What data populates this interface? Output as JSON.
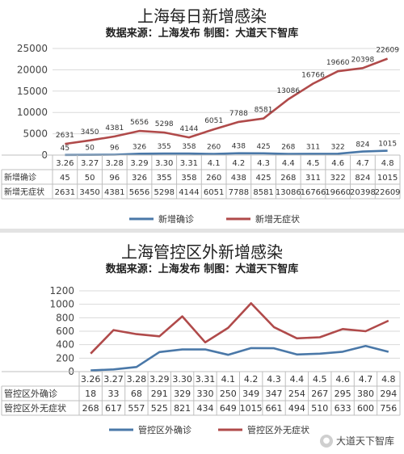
{
  "watermark": {
    "text": "大道天下智库",
    "icon": "wechat-icon"
  },
  "chart_data": [
    {
      "type": "line",
      "title": "上海每日新增感染",
      "subtitle": "数据来源：上海发布 制图：大道天下智库",
      "categories": [
        "3.26",
        "3.27",
        "3.28",
        "3.29",
        "3.30",
        "3.31",
        "4.1",
        "4.2",
        "4.3",
        "4.4",
        "4.5",
        "4.6",
        "4.7",
        "4.8"
      ],
      "ylim": [
        0,
        25000
      ],
      "yticks": [
        0,
        5000,
        10000,
        15000,
        20000,
        25000
      ],
      "grid": true,
      "legend_position": "bottom",
      "data_table": true,
      "series": [
        {
          "name": "新增确诊",
          "color": "#4a78a8",
          "values": [
            45,
            50,
            96,
            326,
            355,
            358,
            260,
            438,
            425,
            268,
            311,
            322,
            824,
            1015
          ]
        },
        {
          "name": "新增无症状",
          "color": "#b04a4a",
          "values": [
            2631,
            3450,
            4381,
            5656,
            5298,
            4144,
            6051,
            7788,
            8581,
            13086,
            16766,
            19660,
            20398,
            22609
          ]
        }
      ]
    },
    {
      "type": "line",
      "title": "上海管控区外新增感染",
      "subtitle": "数据来源：上海发布 制图：大道天下智库",
      "categories": [
        "3.26",
        "3.27",
        "3.28",
        "3.29",
        "3.30",
        "3.31",
        "4.1",
        "4.2",
        "4.3",
        "4.4",
        "4.5",
        "4.6",
        "4.7",
        "4.8"
      ],
      "ylim": [
        0,
        1200
      ],
      "yticks": [
        0,
        200,
        400,
        600,
        800,
        1000,
        1200
      ],
      "grid": true,
      "legend_position": "bottom",
      "data_table": true,
      "series": [
        {
          "name": "管控区外确诊",
          "color": "#4a78a8",
          "values": [
            18,
            33,
            68,
            291,
            329,
            330,
            250,
            349,
            347,
            254,
            267,
            295,
            380,
            294
          ]
        },
        {
          "name": "管控区外无症状",
          "color": "#b04a4a",
          "values": [
            268,
            617,
            557,
            525,
            821,
            434,
            649,
            1015,
            661,
            494,
            510,
            633,
            600,
            756
          ]
        }
      ]
    }
  ]
}
